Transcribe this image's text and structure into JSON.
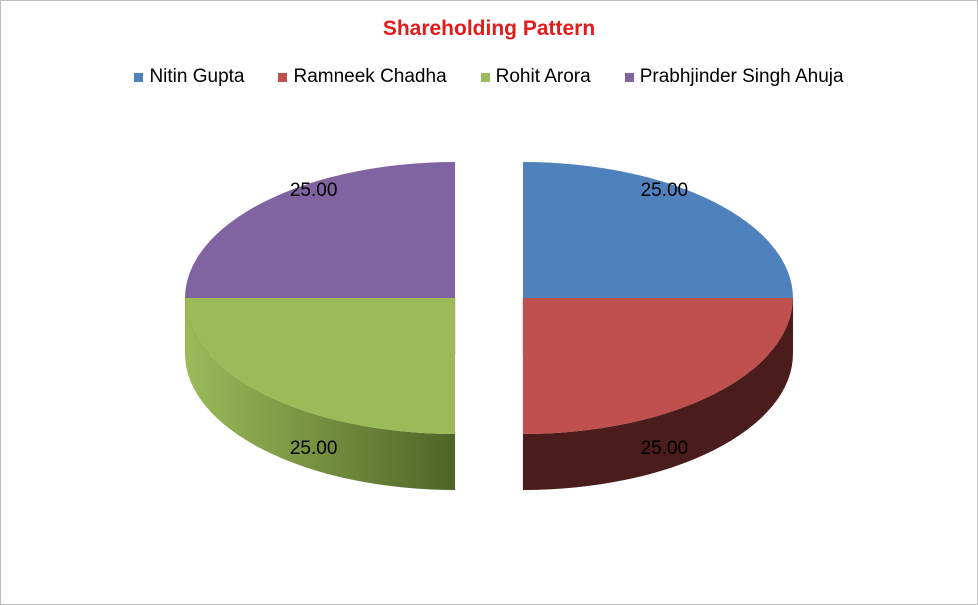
{
  "chart_data": {
    "type": "pie",
    "style": "3d-exploded",
    "title": "Shareholding Pattern",
    "legend_position": "top",
    "slices": [
      {
        "label": "Nitin Gupta",
        "value": 25.0,
        "display": "25.00",
        "color": "#4f81bd",
        "side_dark": "#1f3350"
      },
      {
        "label": "Ramneek Chadha",
        "value": 25.0,
        "display": "25.00",
        "color": "#c0504d",
        "side_dark": "#4a1c1c"
      },
      {
        "label": "Rohit Arora",
        "value": 25.0,
        "display": "25.00",
        "color": "#9bbb59",
        "side_dark": "#4f6427"
      },
      {
        "label": "Prabhjinder Singh Ahuja",
        "value": 25.0,
        "display": "25.00",
        "color": "#8064a2",
        "side_dark": "#352a45"
      }
    ]
  }
}
